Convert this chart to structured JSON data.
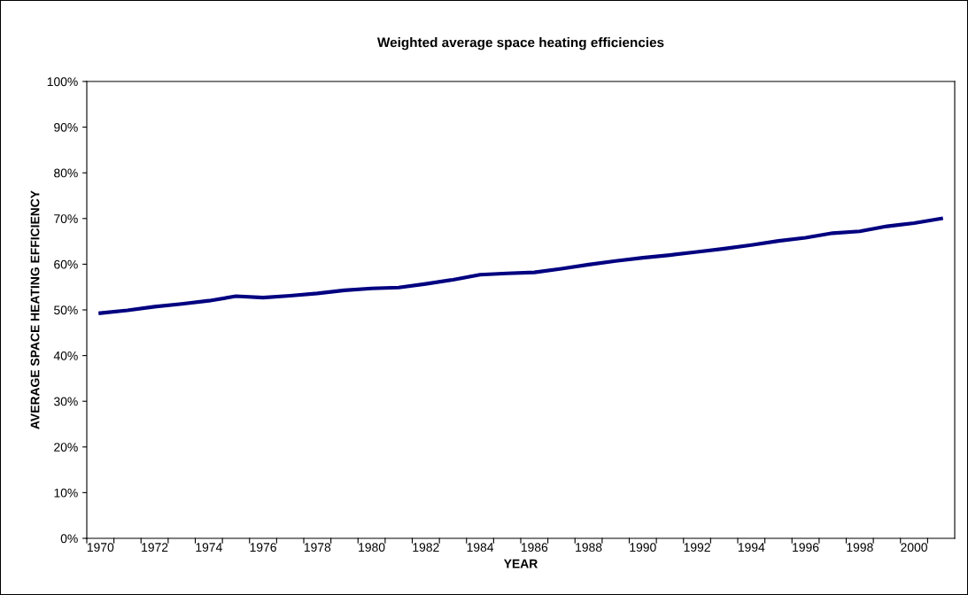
{
  "chart_data": {
    "type": "line",
    "title": "Weighted average space heating efficiencies",
    "xlabel": "YEAR",
    "ylabel": "AVERAGE SPACE HEATING EFFICIENCY",
    "categories": [
      "1970",
      null,
      "1972",
      null,
      "1974",
      null,
      "1976",
      null,
      "1978",
      null,
      "1980",
      null,
      "1982",
      null,
      "1984",
      null,
      "1986",
      null,
      "1988",
      null,
      "1990",
      null,
      "1992",
      null,
      "1994",
      null,
      "1996",
      null,
      "1998",
      null,
      "2000",
      null
    ],
    "series": [
      {
        "color": "#000080",
        "values": [
          49.3,
          49.9,
          50.7,
          51.3,
          52.0,
          53.0,
          52.7,
          53.1,
          53.6,
          54.3,
          54.7,
          54.9,
          55.7,
          56.6,
          57.7,
          58.0,
          58.2,
          59.0,
          59.9,
          60.7,
          61.4,
          62.0,
          62.7,
          63.4,
          64.2,
          65.1,
          65.8,
          66.8,
          67.2,
          68.3,
          69.0,
          70.0
        ]
      }
    ],
    "ylim": [
      0,
      100
    ],
    "yticks": [
      {
        "value": 0,
        "label": "0%"
      },
      {
        "value": 10,
        "label": "10%"
      },
      {
        "value": 20,
        "label": "20%"
      },
      {
        "value": 30,
        "label": "30%"
      },
      {
        "value": 40,
        "label": "40%"
      },
      {
        "value": 50,
        "label": "50%"
      },
      {
        "value": 60,
        "label": "60%"
      },
      {
        "value": 70,
        "label": "70%"
      },
      {
        "value": 80,
        "label": "80%"
      },
      {
        "value": 90,
        "label": "90%"
      },
      {
        "value": 100,
        "label": "100%"
      }
    ],
    "grid": false,
    "legend": false,
    "marker": "none",
    "line_style": "solid"
  }
}
